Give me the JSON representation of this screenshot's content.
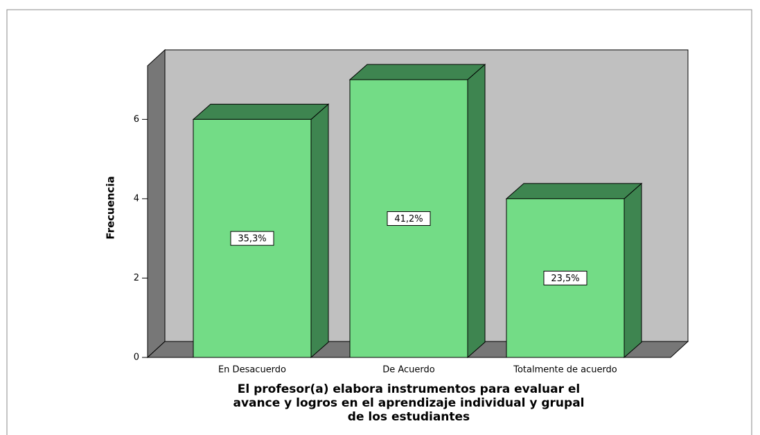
{
  "chart_data": {
    "type": "bar3d",
    "x_label": "El profesor(a) elabora instrumentos para evaluar el avance y logros en el aprendizaje individual y grupal de los estudiantes",
    "y_label": "Frecuencia",
    "categories": [
      "En Desacuerdo",
      "De Acuerdo",
      "Totalmente de acuerdo"
    ],
    "values": [
      6,
      7,
      4
    ],
    "data_labels": [
      {
        "value": 35.3,
        "label": "35,3%"
      },
      {
        "value": 41.2,
        "label": "41,2%"
      },
      {
        "value": 23.5,
        "label": "23,5%"
      }
    ],
    "color": "#73dc86",
    "side_color": "#3e8550",
    "ylim": [
      0,
      7.35
    ],
    "yticks": [
      0,
      2,
      4,
      6
    ]
  }
}
